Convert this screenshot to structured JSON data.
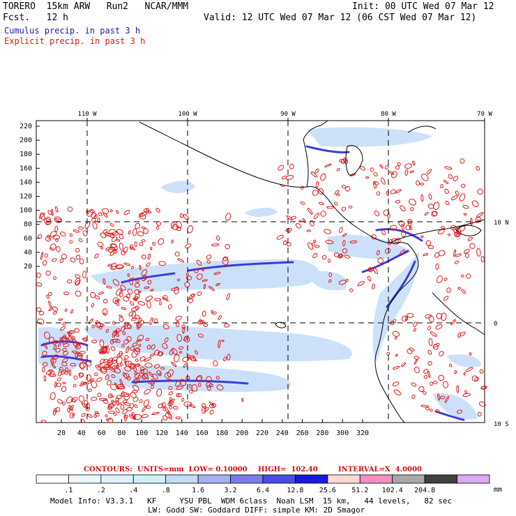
{
  "header": {
    "model": "TORERO  15km ARW   Run2   NCAR/MMM",
    "init": "Init: 00 UTC Wed 07 Mar 12",
    "fcst": "Fcst.   12 h",
    "valid": "Valid: 12 UTC Wed 07 Mar 12 (06 CST Wed 07 Mar 12)",
    "cumulus": "Cumulus precip. in past 3 h",
    "explicit": "Explicit precip. in past 3 h"
  },
  "map": {
    "lon_labels": [
      "110 W",
      "100 W",
      "90 W",
      "80 W",
      "70 W"
    ],
    "lat_labels": [
      "10 N",
      "0",
      "10 S"
    ],
    "y_ticks": [
      "220",
      "200",
      "180",
      "160",
      "140",
      "120",
      "100",
      "80",
      "60",
      "40",
      "20"
    ],
    "x_ticks": [
      "20",
      "40",
      "60",
      "80",
      "100",
      "120",
      "140",
      "160",
      "180",
      "200",
      "220",
      "240",
      "260",
      "280",
      "300",
      "320"
    ],
    "colors": {
      "cumulus": "#3a3ae0",
      "explicit": "#e01818",
      "coast": "#000000",
      "grid": "#000000"
    }
  },
  "contour_info": {
    "contours": "CONTOURS:  UNITS=mm  LOW= 0.10000",
    "high": "HIGH=  102.40",
    "interval": "INTERVAL=X  4.0000"
  },
  "color_scale": {
    "labels": [
      ".1",
      ".2",
      ".4",
      ".8",
      "1.6",
      "3.2",
      "6.4",
      "12.8",
      "25.6",
      "51.2",
      "102.4",
      "204.8"
    ],
    "units": "mm",
    "colors": [
      "#ffffff",
      "#eef6ff",
      "#e0f0ff",
      "#d0f0f6",
      "#c4dcf8",
      "#a6b0f2",
      "#7c7cec",
      "#4a4ae6",
      "#1a1ad8",
      "#ffd8d8",
      "#f090c0",
      "#a8a8a8",
      "#404040",
      "#d8a8f0"
    ]
  },
  "model_info": {
    "line1": "Model Info: V3.3.1   KF     YSU PBL  WDM 6class  Noah LSM  15 km,   44 levels,   82 sec",
    "line2": "LW: Godd SW: Goddard DIFF: simple KM: 2D Smagor"
  }
}
